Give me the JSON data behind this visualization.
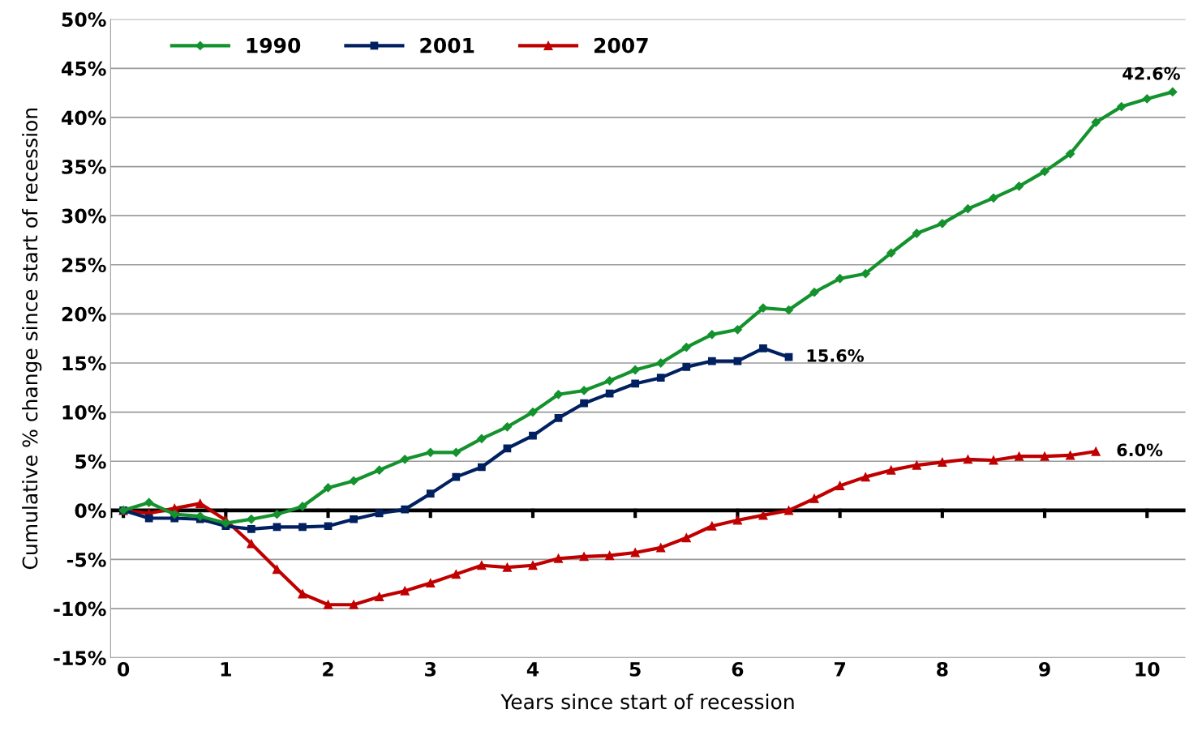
{
  "chart_data": {
    "type": "line",
    "xlabel": "Years since start of recession",
    "ylabel": "Cumulative % change since start of recession",
    "xlim": [
      -0.125,
      10.375
    ],
    "xticks": [
      0,
      1,
      2,
      3,
      4,
      5,
      6,
      7,
      8,
      9,
      10
    ],
    "ylim": [
      -15,
      50
    ],
    "yticks": [
      {
        "value": -15,
        "label": "-15%"
      },
      {
        "value": -10,
        "label": "-10%"
      },
      {
        "value": -5,
        "label": "-5%"
      },
      {
        "value": 0,
        "label": "0%"
      },
      {
        "value": 5,
        "label": "5%"
      },
      {
        "value": 10,
        "label": "10%"
      },
      {
        "value": 15,
        "label": "15%"
      },
      {
        "value": 20,
        "label": "20%"
      },
      {
        "value": 25,
        "label": "25%"
      },
      {
        "value": 30,
        "label": "30%"
      },
      {
        "value": 35,
        "label": "35%"
      },
      {
        "value": 40,
        "label": "40%"
      },
      {
        "value": 45,
        "label": "45%"
      },
      {
        "value": 50,
        "label": "50%"
      }
    ],
    "grid": "y",
    "legend": "top left",
    "line_style": "solid",
    "ref_lines": [
      {
        "axis": "y",
        "value": 0,
        "label": null,
        "color": "#000000"
      }
    ],
    "series": [
      {
        "name": "1990",
        "color": "#13922d",
        "marker": "diamond",
        "x": [
          0,
          0.25,
          0.5,
          0.75,
          1,
          1.25,
          1.5,
          1.75,
          2,
          2.25,
          2.5,
          2.75,
          3,
          3.25,
          3.5,
          3.75,
          4,
          4.25,
          4.5,
          4.75,
          5,
          5.25,
          5.5,
          5.75,
          6,
          6.25,
          6.5,
          6.75,
          7,
          7.25,
          7.5,
          7.75,
          8,
          8.25,
          8.5,
          8.75,
          9,
          9.25,
          9.5,
          9.75,
          10,
          10.25
        ],
        "values": [
          0,
          0.8,
          -0.4,
          -0.6,
          -1.3,
          -0.9,
          -0.4,
          0.4,
          2.3,
          3.0,
          4.1,
          5.2,
          5.9,
          5.9,
          7.3,
          8.5,
          10.0,
          11.8,
          12.2,
          13.2,
          14.3,
          15.0,
          16.6,
          17.9,
          18.4,
          20.6,
          20.4,
          22.2,
          23.6,
          24.1,
          26.2,
          28.2,
          29.2,
          30.7,
          31.8,
          33.0,
          34.5,
          36.3,
          39.5,
          41.1,
          41.9,
          42.6
        ]
      },
      {
        "name": "2001",
        "color": "#002060",
        "marker": "square",
        "x": [
          0,
          0.25,
          0.5,
          0.75,
          1,
          1.25,
          1.5,
          1.75,
          2,
          2.25,
          2.5,
          2.75,
          3,
          3.25,
          3.5,
          3.75,
          4,
          4.25,
          4.5,
          4.75,
          5,
          5.25,
          5.5,
          5.75,
          6,
          6.25,
          6.5
        ],
        "values": [
          0,
          -0.8,
          -0.8,
          -0.9,
          -1.6,
          -1.9,
          -1.7,
          -1.7,
          -1.6,
          -0.9,
          -0.3,
          0.1,
          1.7,
          3.4,
          4.4,
          6.3,
          7.6,
          9.4,
          10.9,
          11.9,
          12.9,
          13.5,
          14.6,
          15.2,
          15.2,
          16.5,
          15.6
        ]
      },
      {
        "name": "2007",
        "color": "#c00000",
        "marker": "triangle",
        "x": [
          0,
          0.25,
          0.5,
          0.75,
          1,
          1.25,
          1.5,
          1.75,
          2,
          2.25,
          2.5,
          2.75,
          3,
          3.25,
          3.5,
          3.75,
          4,
          4.25,
          4.5,
          4.75,
          5,
          5.25,
          5.5,
          5.75,
          6,
          6.25,
          6.5,
          6.75,
          7,
          7.25,
          7.5,
          7.75,
          8,
          8.25,
          8.5,
          8.75,
          9,
          9.25,
          9.5
        ],
        "values": [
          0,
          -0.3,
          0.2,
          0.7,
          -1.0,
          -3.4,
          -6.0,
          -8.5,
          -9.6,
          -9.6,
          -8.8,
          -8.2,
          -7.4,
          -6.5,
          -5.6,
          -5.8,
          -5.6,
          -4.9,
          -4.7,
          -4.6,
          -4.3,
          -3.8,
          -2.8,
          -1.6,
          -1.0,
          -0.5,
          0.0,
          1.2,
          2.5,
          3.4,
          4.1,
          4.6,
          4.9,
          5.2,
          5.1,
          5.5,
          5.5,
          5.6,
          6.0
        ]
      }
    ],
    "annotations": [
      {
        "text": "42.6%",
        "x": 10.25,
        "y": 42.6
      },
      {
        "text": "15.6%",
        "x": 6.5,
        "y": 15.6
      },
      {
        "text": "6.0%",
        "x": 9.5,
        "y": 6.0
      }
    ]
  }
}
